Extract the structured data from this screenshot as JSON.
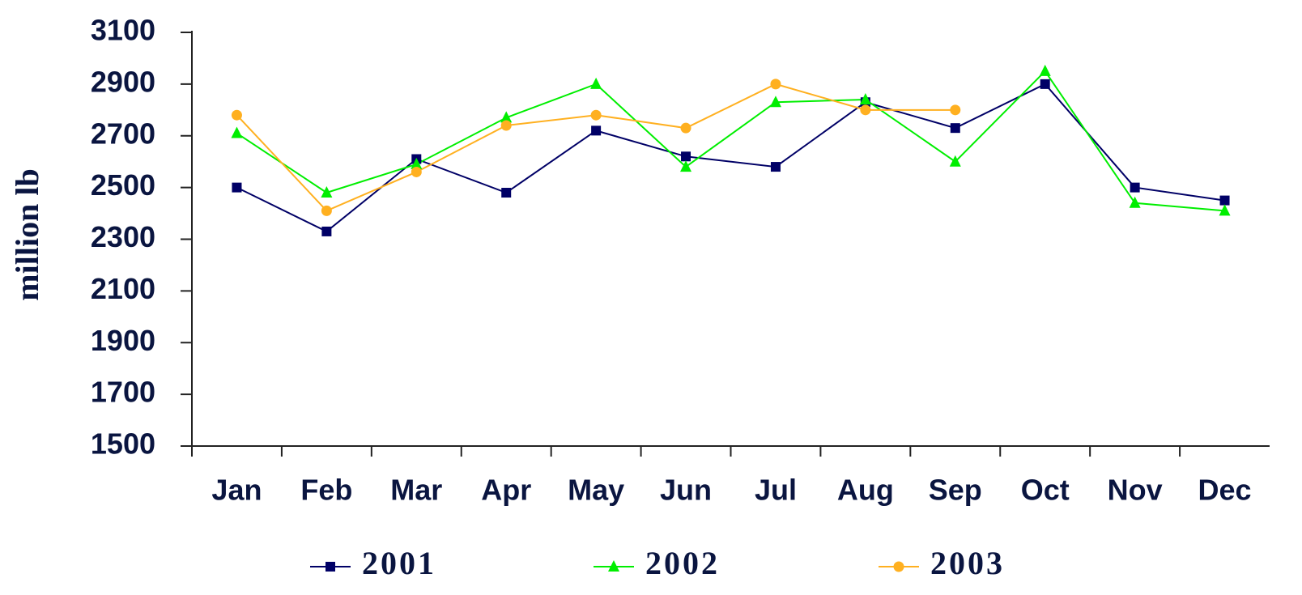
{
  "chart_data": {
    "type": "line",
    "ylabel": "million lb",
    "categories": [
      "Jan",
      "Feb",
      "Mar",
      "Apr",
      "May",
      "Jun",
      "Jul",
      "Aug",
      "Sep",
      "Oct",
      "Nov",
      "Dec"
    ],
    "series": [
      {
        "name": "2001",
        "color": "#000066",
        "marker": "square",
        "values": [
          2500,
          2330,
          2610,
          2480,
          2720,
          2620,
          2580,
          2830,
          2730,
          2900,
          2500,
          2450
        ]
      },
      {
        "name": "2002",
        "color": "#00ee00",
        "marker": "triangle",
        "values": [
          2710,
          2480,
          2590,
          2770,
          2900,
          2580,
          2830,
          2840,
          2600,
          2950,
          2440,
          2410
        ]
      },
      {
        "name": "2003",
        "color": "#ffb020",
        "marker": "circle",
        "values": [
          2780,
          2410,
          2560,
          2740,
          2780,
          2730,
          2900,
          2800,
          2800,
          null,
          null,
          null
        ]
      }
    ],
    "ylim": [
      1500,
      3100
    ],
    "yticks": [
      1500,
      1700,
      1900,
      2100,
      2300,
      2500,
      2700,
      2900,
      3100
    ],
    "grid": false,
    "legend": "bottom"
  }
}
